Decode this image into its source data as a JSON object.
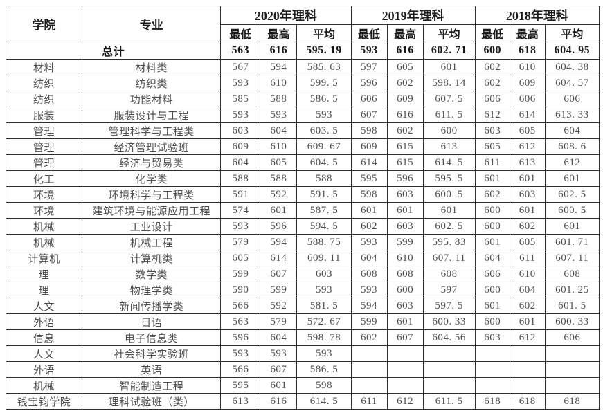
{
  "colors": {
    "background": "#ffffff",
    "border": "#2e2e2e",
    "text_normal": "#4f4f4f",
    "text_bold": "#1c1c1c"
  },
  "table": {
    "col_headers": {
      "college": "学院",
      "major": "专业"
    },
    "year_groups": [
      {
        "label": "2020年理科"
      },
      {
        "label": "2019年理科"
      },
      {
        "label": "2018年理科"
      }
    ],
    "stat_headers": [
      "最低",
      "最高",
      "平均"
    ],
    "total_row": {
      "label": "总计",
      "values": [
        "563",
        "616",
        "595. 19",
        "593",
        "616",
        "602. 71",
        "600",
        "618",
        "604. 95"
      ]
    },
    "rows": [
      {
        "college": "材料",
        "major": "材料类",
        "values": [
          "567",
          "594",
          "585. 63",
          "597",
          "605",
          "601",
          "602",
          "610",
          "604. 38"
        ]
      },
      {
        "college": "纺织",
        "major": "纺织类",
        "values": [
          "593",
          "610",
          "599. 5",
          "596",
          "602",
          "598. 14",
          "602",
          "609",
          "604. 57"
        ]
      },
      {
        "college": "纺织",
        "major": "功能材料",
        "values": [
          "585",
          "588",
          "586. 5",
          "606",
          "609",
          "607. 5",
          "606",
          "606",
          "606"
        ]
      },
      {
        "college": "服装",
        "major": "服装设计与工程",
        "values": [
          "593",
          "593",
          "593",
          "607",
          "616",
          "611. 5",
          "612",
          "614",
          "613. 33"
        ]
      },
      {
        "college": "管理",
        "major": "管理科学与工程类",
        "values": [
          "603",
          "604",
          "603. 5",
          "598",
          "602",
          "600",
          "603",
          "605",
          "604"
        ]
      },
      {
        "college": "管理",
        "major": "经济管理试验班",
        "values": [
          "609",
          "610",
          "609. 67",
          "609",
          "615",
          "613",
          "605",
          "612",
          "608. 6"
        ]
      },
      {
        "college": "管理",
        "major": "经济与贸易类",
        "values": [
          "604",
          "605",
          "604. 5",
          "614",
          "615",
          "614. 5",
          "611",
          "613",
          "612"
        ]
      },
      {
        "college": "化工",
        "major": "化学类",
        "values": [
          "588",
          "588",
          "588",
          "595",
          "596",
          "595. 5",
          "601",
          "601",
          "601"
        ]
      },
      {
        "college": "环境",
        "major": "环境科学与工程类",
        "values": [
          "591",
          "592",
          "591. 5",
          "598",
          "603",
          "600. 5",
          "602",
          "603",
          "602. 5"
        ]
      },
      {
        "college": "环境",
        "major": "建筑环境与能源应用工程",
        "values": [
          "574",
          "601",
          "587. 5",
          "601",
          "601",
          "601",
          "600",
          "601",
          "600. 5"
        ]
      },
      {
        "college": "机械",
        "major": "工业设计",
        "values": [
          "593",
          "596",
          "594. 5",
          "602",
          "603",
          "602. 5",
          "600",
          "602",
          "601"
        ]
      },
      {
        "college": "机械",
        "major": "机械工程",
        "values": [
          "579",
          "594",
          "588. 75",
          "593",
          "599",
          "595. 83",
          "601",
          "605",
          "601. 71"
        ]
      },
      {
        "college": "计算机",
        "major": "计算机类",
        "values": [
          "605",
          "614",
          "609. 11",
          "604",
          "610",
          "607. 11",
          "604",
          "611",
          "607. 11"
        ]
      },
      {
        "college": "理",
        "major": "数学类",
        "values": [
          "599",
          "607",
          "603",
          "608",
          "608",
          "608",
          "606",
          "610",
          "608"
        ]
      },
      {
        "college": "理",
        "major": "物理学类",
        "values": [
          "590",
          "599",
          "593",
          "593",
          "600",
          "597",
          "600",
          "604",
          "601. 25"
        ]
      },
      {
        "college": "人文",
        "major": "新闻传播学类",
        "values": [
          "566",
          "592",
          "581. 5",
          "594",
          "603",
          "597. 5",
          "601",
          "602",
          "601. 5"
        ]
      },
      {
        "college": "外语",
        "major": "日语",
        "values": [
          "563",
          "579",
          "572. 67",
          "599",
          "601",
          "600. 33",
          "600",
          "601",
          "600. 33"
        ]
      },
      {
        "college": "信息",
        "major": "电子信息类",
        "values": [
          "596",
          "604",
          "598. 78",
          "602",
          "607",
          "604. 56",
          "603",
          "612",
          "606"
        ]
      },
      {
        "college": "人文",
        "major": "社会科学实验班",
        "values": [
          "593",
          "593",
          "593",
          "",
          "",
          "",
          "",
          "",
          ""
        ]
      },
      {
        "college": "外语",
        "major": "英语",
        "values": [
          "566",
          "607",
          "586. 5",
          "",
          "",
          "",
          "",
          "",
          ""
        ]
      },
      {
        "college": "机械",
        "major": "智能制造工程",
        "values": [
          "595",
          "601",
          "598",
          "",
          "",
          "",
          "",
          "",
          ""
        ]
      },
      {
        "college": "钱宝钧学院",
        "major": "理科试验班（类）",
        "values": [
          "613",
          "616",
          "614. 5",
          "611",
          "612",
          "611. 5",
          "618",
          "618",
          "618"
        ]
      }
    ]
  }
}
